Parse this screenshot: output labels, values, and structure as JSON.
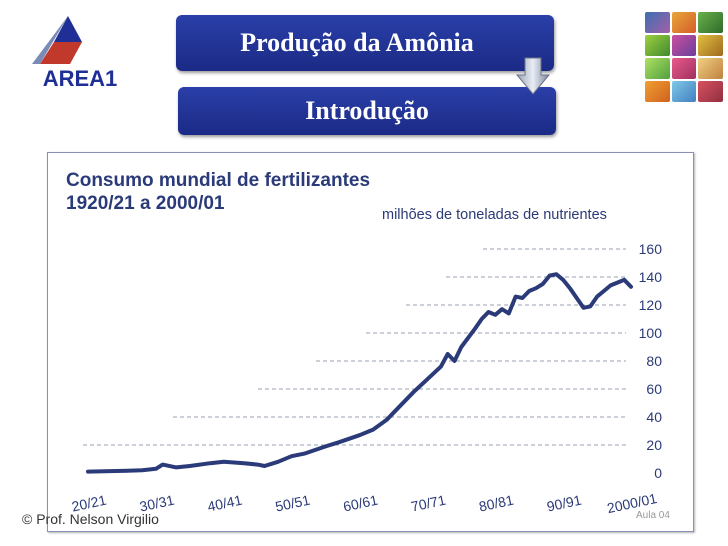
{
  "logo": {
    "text": "AREA1"
  },
  "banner": {
    "title": "Produção da Amônia",
    "subtitle": "Introdução"
  },
  "footer": {
    "text": "© Prof. Nelson Virgilio",
    "page": "Aula 04"
  },
  "colors": {
    "banner": "#1f2f95",
    "line": "#2b3a78",
    "axis": "#2b3a78"
  },
  "chart_data": {
    "type": "line",
    "title_line1": "Consumo mundial de fertilizantes",
    "title_line2": "1920/21 a 2000/01",
    "ylabel": "milhões de toneladas de nutrientes",
    "xlabel": "",
    "categories": [
      "20/21",
      "30/31",
      "40/41",
      "50/51",
      "60/61",
      "70/71",
      "80/81",
      "90/91",
      "2000/01"
    ],
    "y_ticks": [
      0,
      20,
      40,
      60,
      80,
      100,
      120,
      140,
      160
    ],
    "ylim": [
      0,
      160
    ],
    "grid": "dashed, right-aligned per tick",
    "series": [
      {
        "values": [
          [
            1920,
            1
          ],
          [
            1925,
            1.5
          ],
          [
            1928,
            2
          ],
          [
            1930,
            3
          ],
          [
            1931,
            6
          ],
          [
            1933,
            4
          ],
          [
            1935,
            5
          ],
          [
            1938,
            7
          ],
          [
            1940,
            8
          ],
          [
            1943,
            7
          ],
          [
            1945,
            6
          ],
          [
            1946,
            5
          ],
          [
            1948,
            8
          ],
          [
            1950,
            12
          ],
          [
            1952,
            14
          ],
          [
            1955,
            19
          ],
          [
            1957,
            22
          ],
          [
            1960,
            27
          ],
          [
            1962,
            31
          ],
          [
            1964,
            38
          ],
          [
            1966,
            48
          ],
          [
            1968,
            58
          ],
          [
            1970,
            67
          ],
          [
            1972,
            76
          ],
          [
            1973,
            85
          ],
          [
            1974,
            80
          ],
          [
            1975,
            90
          ],
          [
            1977,
            103
          ],
          [
            1978,
            110
          ],
          [
            1979,
            115
          ],
          [
            1980,
            113
          ],
          [
            1981,
            117
          ],
          [
            1982,
            114
          ],
          [
            1983,
            126
          ],
          [
            1984,
            125
          ],
          [
            1985,
            130
          ],
          [
            1986,
            132
          ],
          [
            1987,
            135
          ],
          [
            1988,
            141
          ],
          [
            1989,
            142
          ],
          [
            1990,
            138
          ],
          [
            1991,
            132
          ],
          [
            1992,
            125
          ],
          [
            1993,
            118
          ],
          [
            1994,
            119
          ],
          [
            1995,
            126
          ],
          [
            1996,
            130
          ],
          [
            1997,
            134
          ],
          [
            1998,
            136
          ],
          [
            1999,
            138
          ],
          [
            2000,
            133
          ]
        ]
      }
    ]
  }
}
